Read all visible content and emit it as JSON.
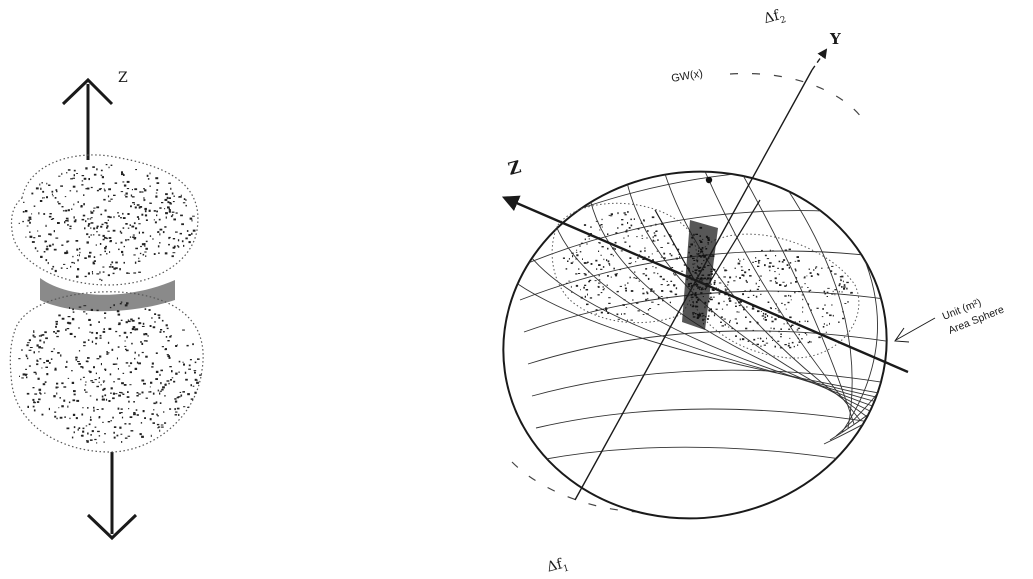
{
  "left_figure": {
    "axis_label": "Z"
  },
  "right_figure": {
    "axis_z_label": "Z",
    "axis_y_label": "Y",
    "delta_f_top": "Δf",
    "delta_f_top_sub": "2",
    "delta_f_bottom": "Δf",
    "delta_f_bottom_sub": "1",
    "gw_label": "GW(x)",
    "sphere_label_line1": "Unit (m²)",
    "sphere_label_line2": "Area Sphere"
  },
  "colors": {
    "ink": "#1a1a1a",
    "dots": "#222222",
    "grid": "#333333"
  }
}
